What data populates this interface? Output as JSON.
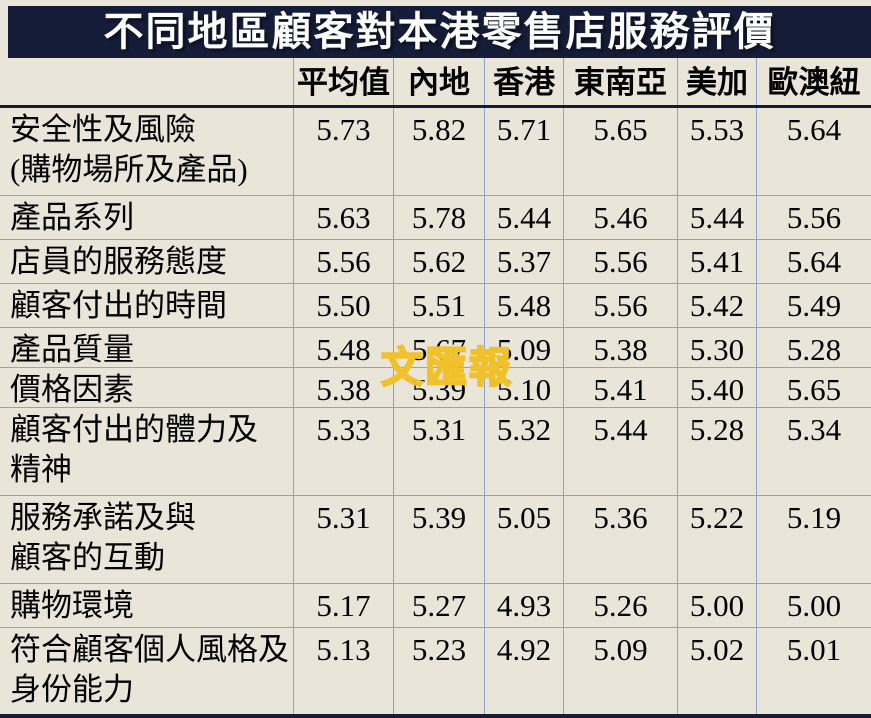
{
  "page_title": "不同地區顧客對本港零售店服務評價",
  "watermark_text": "文匯報",
  "colors": {
    "navy_band": "#151c38",
    "background": "#e9e5d9",
    "grid_line": "#8fa3c8",
    "title_text": "#ffffff",
    "body_text": "#000000",
    "watermark_yellow": "#f0c12b"
  },
  "chart_data": {
    "type": "table",
    "title": "不同地區顧客對本港零售店服務評價",
    "columns": [
      "平均值",
      "內地",
      "香港",
      "東南亞",
      "美加",
      "歐澳紐"
    ],
    "rows": [
      {
        "label_lines": [
          "安全性及風險",
          "(購物場所及產品)"
        ],
        "values": [
          "5.73",
          "5.82",
          "5.71",
          "5.65",
          "5.53",
          "5.64"
        ]
      },
      {
        "label_lines": [
          "產品系列"
        ],
        "values": [
          "5.63",
          "5.78",
          "5.44",
          "5.46",
          "5.44",
          "5.56"
        ]
      },
      {
        "label_lines": [
          "店員的服務態度"
        ],
        "values": [
          "5.56",
          "5.62",
          "5.37",
          "5.56",
          "5.41",
          "5.64"
        ]
      },
      {
        "label_lines": [
          "顧客付出的時間"
        ],
        "values": [
          "5.50",
          "5.51",
          "5.48",
          "5.56",
          "5.42",
          "5.49"
        ]
      },
      {
        "label_lines": [
          "產品質量"
        ],
        "values": [
          "5.48",
          "5.67",
          "5.09",
          "5.38",
          "5.30",
          "5.28"
        ]
      },
      {
        "label_lines": [
          "價格因素"
        ],
        "values": [
          "5.38",
          "5.39",
          "5.10",
          "5.41",
          "5.40",
          "5.65"
        ]
      },
      {
        "label_lines": [
          "顧客付出的體力及",
          "精神"
        ],
        "values": [
          "5.33",
          "5.31",
          "5.32",
          "5.44",
          "5.28",
          "5.34"
        ]
      },
      {
        "label_lines": [
          "服務承諾及與",
          "顧客的互動"
        ],
        "values": [
          "5.31",
          "5.39",
          "5.05",
          "5.36",
          "5.22",
          "5.19"
        ]
      },
      {
        "label_lines": [
          "購物環境"
        ],
        "values": [
          "5.17",
          "5.27",
          "4.93",
          "5.26",
          "5.00",
          "5.00"
        ]
      },
      {
        "label_lines": [
          "符合顧客個人風格及",
          "身份能力"
        ],
        "values": [
          "5.13",
          "5.23",
          "4.92",
          "5.09",
          "5.02",
          "5.01"
        ]
      }
    ]
  }
}
